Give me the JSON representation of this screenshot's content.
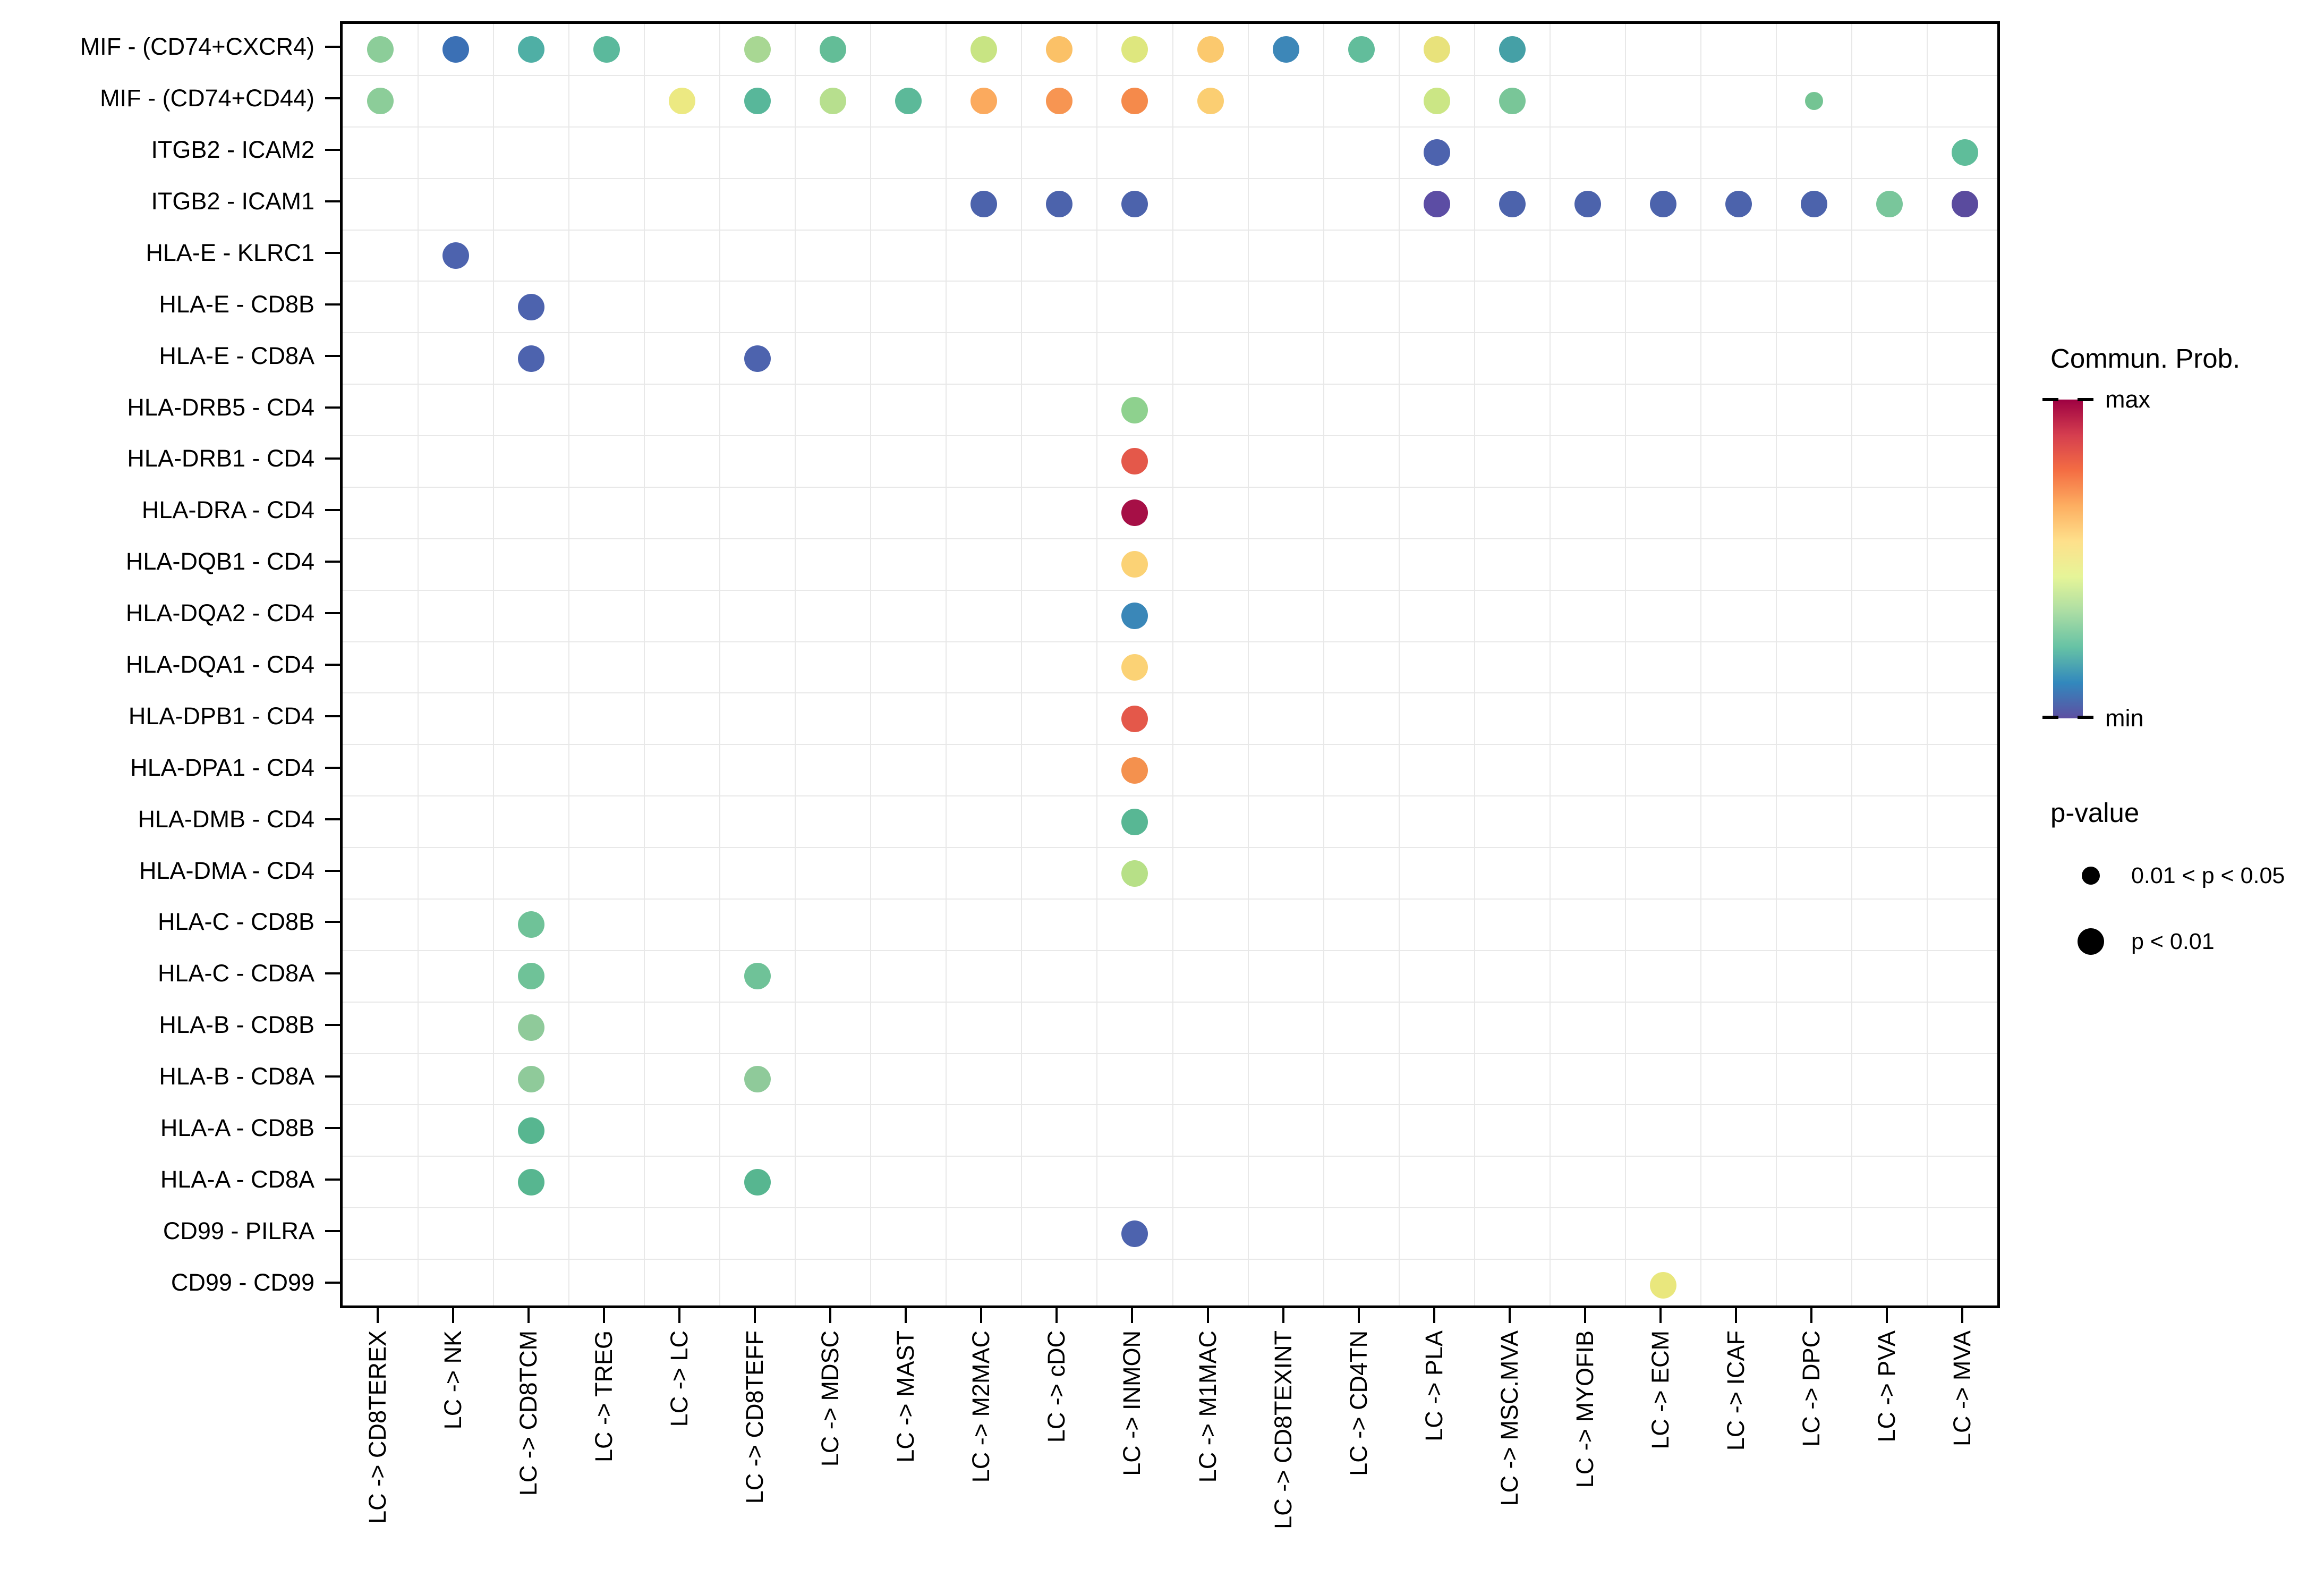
{
  "legend": {
    "colorbar": {
      "title": "Commun. Prob.",
      "max_label": "max",
      "min_label": "min",
      "gradient_top_to_bottom": [
        "#9e0142",
        "#d53e4f",
        "#f46d43",
        "#fdae61",
        "#fee08b",
        "#e6f598",
        "#abdda4",
        "#66c2a5",
        "#3288bd",
        "#5e4fa2"
      ]
    },
    "pvalue": {
      "title": "p-value",
      "items": [
        {
          "label": "0.01 < p < 0.05",
          "size": "small"
        },
        {
          "label": "p < 0.01",
          "size": "large"
        }
      ]
    }
  },
  "chart_data": {
    "type": "scatter",
    "subtype": "dot-plot (ligand-receptor communication bubble plot)",
    "title": "",
    "xlabel": "",
    "ylabel": "",
    "grid": true,
    "legend_position": "right",
    "x_categories": [
      "LC -> CD8TEREX",
      "LC -> NK",
      "LC -> CD8TCM",
      "LC -> TREG",
      "LC -> LC",
      "LC -> CD8TEFF",
      "LC -> MDSC",
      "LC -> MAST",
      "LC -> M2MAC",
      "LC -> cDC",
      "LC -> INMON",
      "LC -> M1MAC",
      "LC -> CD8TEXINT",
      "LC -> CD4TN",
      "LC -> PLA",
      "LC -> MSC.MVA",
      "LC -> MYOFIB",
      "LC -> ECM",
      "LC -> ICAF",
      "LC -> DPC",
      "LC -> PVA",
      "LC -> MVA"
    ],
    "y_categories": [
      "MIF - (CD74+CXCR4)",
      "MIF - (CD74+CD44)",
      "ITGB2 - ICAM2",
      "ITGB2 - ICAM1",
      "HLA-E - KLRC1",
      "HLA-E - CD8B",
      "HLA-E - CD8A",
      "HLA-DRB5 - CD4",
      "HLA-DRB1 - CD4",
      "HLA-DRA - CD4",
      "HLA-DQB1 - CD4",
      "HLA-DQA2 - CD4",
      "HLA-DQA1 - CD4",
      "HLA-DPB1 - CD4",
      "HLA-DPA1 - CD4",
      "HLA-DMB - CD4",
      "HLA-DMA - CD4",
      "HLA-C - CD8B",
      "HLA-C - CD8A",
      "HLA-B - CD8B",
      "HLA-B - CD8A",
      "HLA-A - CD8B",
      "HLA-A - CD8A",
      "CD99 - PILRA",
      "CD99 - CD99"
    ],
    "size_encoding": {
      "large": "p < 0.01",
      "small": "0.01 < p < 0.05"
    },
    "color_encoding": "communication probability, Spectral colormap: min = blue/purple, max = dark red",
    "dots": [
      {
        "row": 0,
        "col": 0,
        "color": "#8ccd99",
        "size": "large"
      },
      {
        "row": 0,
        "col": 1,
        "color": "#3b70b5",
        "size": "large"
      },
      {
        "row": 0,
        "col": 2,
        "color": "#4fafa5",
        "size": "large"
      },
      {
        "row": 0,
        "col": 3,
        "color": "#5bb99c",
        "size": "large"
      },
      {
        "row": 0,
        "col": 5,
        "color": "#a8d793",
        "size": "large"
      },
      {
        "row": 0,
        "col": 6,
        "color": "#63bd97",
        "size": "large"
      },
      {
        "row": 0,
        "col": 8,
        "color": "#c8e483",
        "size": "large"
      },
      {
        "row": 0,
        "col": 9,
        "color": "#fbc167",
        "size": "large"
      },
      {
        "row": 0,
        "col": 10,
        "color": "#dee77e",
        "size": "large"
      },
      {
        "row": 0,
        "col": 11,
        "color": "#fbc96e",
        "size": "large"
      },
      {
        "row": 0,
        "col": 12,
        "color": "#3d87b8",
        "size": "large"
      },
      {
        "row": 0,
        "col": 13,
        "color": "#62bd9b",
        "size": "large"
      },
      {
        "row": 0,
        "col": 14,
        "color": "#e8e27b",
        "size": "large"
      },
      {
        "row": 0,
        "col": 15,
        "color": "#45a0a6",
        "size": "large"
      },
      {
        "row": 1,
        "col": 0,
        "color": "#8ccd99",
        "size": "large"
      },
      {
        "row": 1,
        "col": 4,
        "color": "#ece982",
        "size": "large"
      },
      {
        "row": 1,
        "col": 5,
        "color": "#58b79a",
        "size": "large"
      },
      {
        "row": 1,
        "col": 6,
        "color": "#b7df8e",
        "size": "large"
      },
      {
        "row": 1,
        "col": 7,
        "color": "#5cb999",
        "size": "large"
      },
      {
        "row": 1,
        "col": 8,
        "color": "#fbaa5e",
        "size": "large"
      },
      {
        "row": 1,
        "col": 9,
        "color": "#f79552",
        "size": "large"
      },
      {
        "row": 1,
        "col": 10,
        "color": "#f58a4b",
        "size": "large"
      },
      {
        "row": 1,
        "col": 11,
        "color": "#fbce72",
        "size": "large"
      },
      {
        "row": 1,
        "col": 14,
        "color": "#cbe685",
        "size": "large"
      },
      {
        "row": 1,
        "col": 15,
        "color": "#79c698",
        "size": "large"
      },
      {
        "row": 1,
        "col": 19,
        "color": "#74c493",
        "size": "small"
      },
      {
        "row": 2,
        "col": 14,
        "color": "#4d63ae",
        "size": "large"
      },
      {
        "row": 2,
        "col": 21,
        "color": "#5fbd9a",
        "size": "large"
      },
      {
        "row": 3,
        "col": 8,
        "color": "#4c63ac",
        "size": "large"
      },
      {
        "row": 3,
        "col": 9,
        "color": "#4c63ac",
        "size": "large"
      },
      {
        "row": 3,
        "col": 10,
        "color": "#4c63ac",
        "size": "large"
      },
      {
        "row": 3,
        "col": 14,
        "color": "#5c4da4",
        "size": "large"
      },
      {
        "row": 3,
        "col": 15,
        "color": "#4c63ac",
        "size": "large"
      },
      {
        "row": 3,
        "col": 16,
        "color": "#4c63ac",
        "size": "large"
      },
      {
        "row": 3,
        "col": 17,
        "color": "#4c63ac",
        "size": "large"
      },
      {
        "row": 3,
        "col": 18,
        "color": "#4c63ac",
        "size": "large"
      },
      {
        "row": 3,
        "col": 19,
        "color": "#4c63ac",
        "size": "large"
      },
      {
        "row": 3,
        "col": 20,
        "color": "#79c69b",
        "size": "large"
      },
      {
        "row": 3,
        "col": 21,
        "color": "#5a4b9e",
        "size": "large"
      },
      {
        "row": 4,
        "col": 1,
        "color": "#4d63ae",
        "size": "large"
      },
      {
        "row": 5,
        "col": 2,
        "color": "#4d63ae",
        "size": "large"
      },
      {
        "row": 6,
        "col": 2,
        "color": "#4d63ae",
        "size": "large"
      },
      {
        "row": 6,
        "col": 5,
        "color": "#4d63ae",
        "size": "large"
      },
      {
        "row": 7,
        "col": 10,
        "color": "#8ed18e",
        "size": "large"
      },
      {
        "row": 8,
        "col": 10,
        "color": "#e4584a",
        "size": "large"
      },
      {
        "row": 9,
        "col": 10,
        "color": "#a60f46",
        "size": "large"
      },
      {
        "row": 10,
        "col": 10,
        "color": "#fbd275",
        "size": "large"
      },
      {
        "row": 11,
        "col": 10,
        "color": "#3a87b8",
        "size": "large"
      },
      {
        "row": 12,
        "col": 10,
        "color": "#fbd275",
        "size": "large"
      },
      {
        "row": 13,
        "col": 10,
        "color": "#e4584a",
        "size": "large"
      },
      {
        "row": 14,
        "col": 10,
        "color": "#f4914e",
        "size": "large"
      },
      {
        "row": 15,
        "col": 10,
        "color": "#58b794",
        "size": "large"
      },
      {
        "row": 16,
        "col": 10,
        "color": "#b7e087",
        "size": "large"
      },
      {
        "row": 17,
        "col": 2,
        "color": "#6fc298",
        "size": "large"
      },
      {
        "row": 18,
        "col": 2,
        "color": "#6fc298",
        "size": "large"
      },
      {
        "row": 18,
        "col": 5,
        "color": "#6fc298",
        "size": "large"
      },
      {
        "row": 19,
        "col": 2,
        "color": "#8fca9a",
        "size": "large"
      },
      {
        "row": 20,
        "col": 2,
        "color": "#8fca9a",
        "size": "large"
      },
      {
        "row": 20,
        "col": 5,
        "color": "#8fca9a",
        "size": "large"
      },
      {
        "row": 21,
        "col": 2,
        "color": "#57b690",
        "size": "large"
      },
      {
        "row": 22,
        "col": 2,
        "color": "#57b690",
        "size": "large"
      },
      {
        "row": 22,
        "col": 5,
        "color": "#57b690",
        "size": "large"
      },
      {
        "row": 23,
        "col": 10,
        "color": "#4d63ae",
        "size": "large"
      },
      {
        "row": 24,
        "col": 17,
        "color": "#e9e77d",
        "size": "large"
      }
    ]
  }
}
